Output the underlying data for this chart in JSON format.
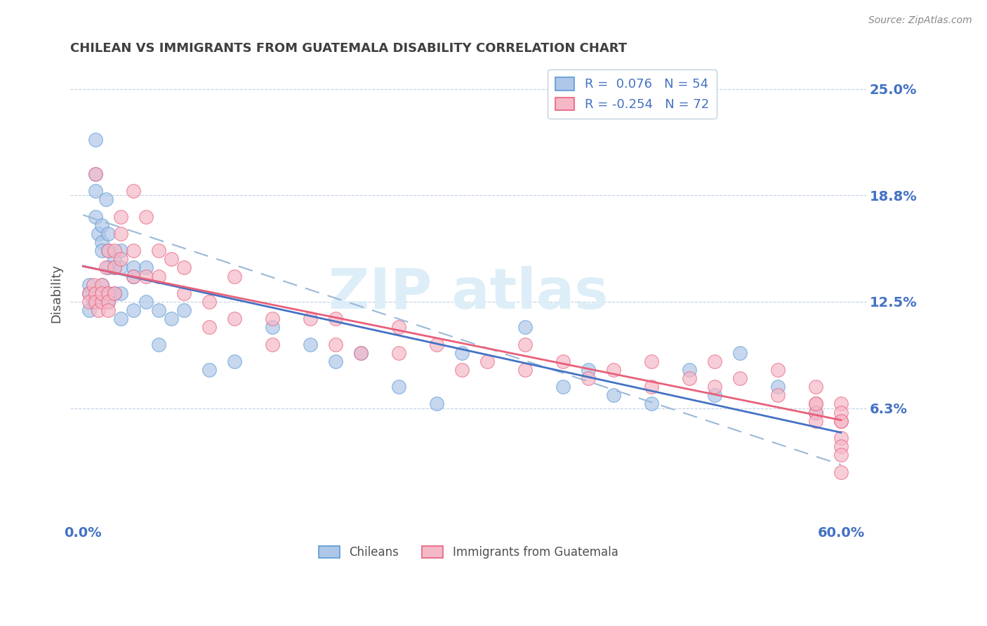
{
  "title": "CHILEAN VS IMMIGRANTS FROM GUATEMALA DISABILITY CORRELATION CHART",
  "source_text": "Source: ZipAtlas.com",
  "ylabel": "Disability",
  "xlim": [
    -0.01,
    0.62
  ],
  "ylim": [
    -0.005,
    0.265
  ],
  "yticks": [
    0.0625,
    0.125,
    0.1875,
    0.25
  ],
  "ytick_labels": [
    "6.3%",
    "12.5%",
    "18.8%",
    "25.0%"
  ],
  "xticks": [
    0.0,
    0.6
  ],
  "xtick_labels": [
    "0.0%",
    "60.0%"
  ],
  "chilean_color": "#aec6e8",
  "guatemala_color": "#f5b8c8",
  "chilean_edge_color": "#5b9bd5",
  "guatemala_edge_color": "#e8607a",
  "chilean_line_color": "#4472c4",
  "chilean_dash_color": "#9ab8d8",
  "guatemala_line_color": "#e8607a",
  "tick_label_color": "#4472c4",
  "watermark_color": "#d8e8f0",
  "title_color": "#404040",
  "source_color": "#888888",
  "legend_text_color": "#4472c4",
  "chilean_R": 0.076,
  "chilean_N": 54,
  "guatemala_R": -0.254,
  "guatemala_N": 72,
  "legend_label1": "Chileans",
  "legend_label2": "Immigrants from Guatemala",
  "chilean_x": [
    0.005,
    0.005,
    0.005,
    0.008,
    0.01,
    0.01,
    0.01,
    0.01,
    0.012,
    0.015,
    0.015,
    0.015,
    0.015,
    0.018,
    0.02,
    0.02,
    0.02,
    0.02,
    0.02,
    0.025,
    0.025,
    0.025,
    0.03,
    0.03,
    0.03,
    0.03,
    0.04,
    0.04,
    0.04,
    0.05,
    0.05,
    0.06,
    0.06,
    0.07,
    0.08,
    0.1,
    0.12,
    0.15,
    0.18,
    0.2,
    0.22,
    0.25,
    0.28,
    0.3,
    0.35,
    0.38,
    0.4,
    0.42,
    0.45,
    0.48,
    0.5,
    0.52,
    0.55,
    0.58
  ],
  "chilean_y": [
    0.135,
    0.13,
    0.12,
    0.125,
    0.22,
    0.2,
    0.19,
    0.175,
    0.165,
    0.17,
    0.16,
    0.155,
    0.135,
    0.185,
    0.165,
    0.155,
    0.145,
    0.13,
    0.125,
    0.15,
    0.145,
    0.13,
    0.155,
    0.145,
    0.13,
    0.115,
    0.145,
    0.14,
    0.12,
    0.145,
    0.125,
    0.12,
    0.1,
    0.115,
    0.12,
    0.085,
    0.09,
    0.11,
    0.1,
    0.09,
    0.095,
    0.075,
    0.065,
    0.095,
    0.11,
    0.075,
    0.085,
    0.07,
    0.065,
    0.085,
    0.07,
    0.095,
    0.075,
    0.06
  ],
  "guatemala_x": [
    0.005,
    0.005,
    0.008,
    0.01,
    0.01,
    0.01,
    0.012,
    0.015,
    0.015,
    0.015,
    0.018,
    0.02,
    0.02,
    0.02,
    0.02,
    0.025,
    0.025,
    0.025,
    0.03,
    0.03,
    0.03,
    0.04,
    0.04,
    0.04,
    0.05,
    0.05,
    0.06,
    0.06,
    0.07,
    0.08,
    0.08,
    0.1,
    0.1,
    0.12,
    0.12,
    0.15,
    0.15,
    0.18,
    0.2,
    0.2,
    0.22,
    0.25,
    0.25,
    0.28,
    0.3,
    0.32,
    0.35,
    0.35,
    0.38,
    0.4,
    0.42,
    0.45,
    0.45,
    0.48,
    0.5,
    0.5,
    0.52,
    0.55,
    0.55,
    0.58,
    0.58,
    0.58,
    0.58,
    0.58,
    0.6,
    0.6,
    0.6,
    0.6,
    0.6,
    0.6,
    0.6,
    0.6
  ],
  "guatemala_y": [
    0.13,
    0.125,
    0.135,
    0.13,
    0.125,
    0.2,
    0.12,
    0.135,
    0.125,
    0.13,
    0.145,
    0.155,
    0.13,
    0.125,
    0.12,
    0.155,
    0.145,
    0.13,
    0.15,
    0.175,
    0.165,
    0.19,
    0.155,
    0.14,
    0.175,
    0.14,
    0.155,
    0.14,
    0.15,
    0.145,
    0.13,
    0.125,
    0.11,
    0.14,
    0.115,
    0.115,
    0.1,
    0.115,
    0.115,
    0.1,
    0.095,
    0.11,
    0.095,
    0.1,
    0.085,
    0.09,
    0.085,
    0.1,
    0.09,
    0.08,
    0.085,
    0.09,
    0.075,
    0.08,
    0.075,
    0.09,
    0.08,
    0.07,
    0.085,
    0.065,
    0.06,
    0.075,
    0.065,
    0.055,
    0.065,
    0.055,
    0.06,
    0.055,
    0.045,
    0.04,
    0.035,
    0.025
  ]
}
